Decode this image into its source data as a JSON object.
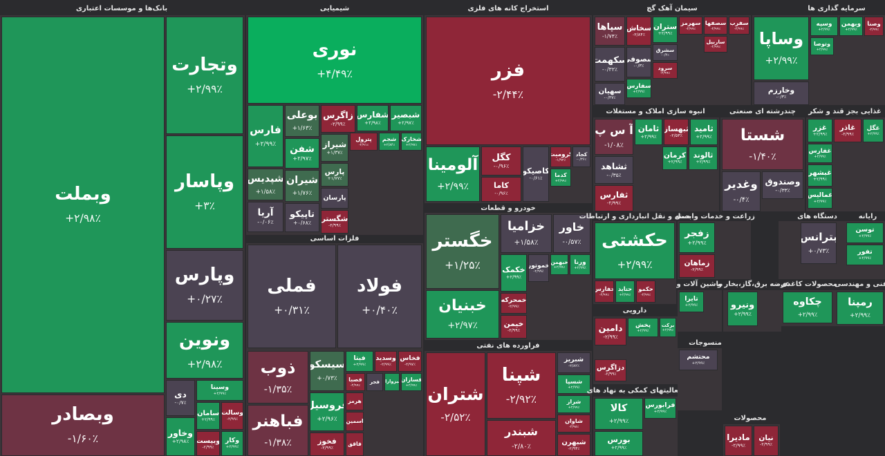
{
  "sectors": [
    {
      "title": "بانک‌ها و موسسات اعتباری",
      "tiles": [
        {
          "name": "وبملت",
          "change": "+۲/۹۸٪",
          "color": "#1f9659"
        },
        {
          "name": "وتجارت",
          "change": "+۲/۹۹٪",
          "color": "#1f9659"
        },
        {
          "name": "وپاسار",
          "change": "+۳٪",
          "color": "#1f9659"
        },
        {
          "name": "وپارس",
          "change": "+۰/۲۷٪",
          "color": "#4b4352"
        },
        {
          "name": "ونوین",
          "change": "+۲/۹۸٪",
          "color": "#1f9659"
        },
        {
          "name": "وبصادر",
          "change": "-۱/۶۰٪",
          "color": "#6e3344"
        },
        {
          "name": "دی",
          "change": "-۰/۷٪",
          "color": "#4b4352"
        },
        {
          "name": "وسینا",
          "change": "+۲/۹۹٪",
          "color": "#1f9659"
        },
        {
          "name": "سامان",
          "change": "+۲/۹۹٪",
          "color": "#1f9659"
        },
        {
          "name": "وسالت",
          "change": "-۲/۹۹٪",
          "color": "#8f2638"
        },
        {
          "name": "وخاور",
          "change": "+۲/۹۸٪",
          "color": "#1f9659"
        },
        {
          "name": "وبیست",
          "change": "-۲/۹۹٪",
          "color": "#8f2638"
        },
        {
          "name": "وکار",
          "change": "+۲/۹۹٪",
          "color": "#1f9659"
        }
      ]
    },
    {
      "title": "شیمیایی",
      "tiles": [
        {
          "name": "نوری",
          "change": "+۴/۴۹٪",
          "color": "#0aae5d"
        },
        {
          "name": "فارس",
          "change": "+۲/۹۹٪",
          "color": "#1f9659"
        },
        {
          "name": "بوعلی",
          "change": "+۱/۶۳٪",
          "color": "#3f6b4f"
        },
        {
          "name": "شفن",
          "change": "+۲/۹۷٪",
          "color": "#1f9659"
        },
        {
          "name": "زاگرس",
          "change": "-۲/۹۹٪",
          "color": "#8f2638"
        },
        {
          "name": "شفارس",
          "change": "+۲/۹۸٪",
          "color": "#1f9659"
        },
        {
          "name": "شبصیر",
          "change": "+۲/۹۷٪",
          "color": "#1f9659"
        },
        {
          "name": "شیراز",
          "change": "+۱/۳۷٪",
          "color": "#3f6b4f"
        },
        {
          "name": "پترول",
          "change": "-۲/۹۱٪",
          "color": "#8f2638"
        },
        {
          "name": "شجم",
          "change": "+۲/۸۴٪",
          "color": "#1f9659"
        },
        {
          "name": "شخارک",
          "change": "+۲/۹۷٪",
          "color": "#1f9659"
        },
        {
          "name": "شپدیس",
          "change": "+۱/۵۸٪",
          "color": "#3f6b4f"
        },
        {
          "name": "شیران",
          "change": "+۱/۷۶٪",
          "color": "#3f6b4f"
        },
        {
          "name": "پارس",
          "change": "+۱/۷۷٪",
          "color": "#3f6b4f"
        },
        {
          "name": "پارسان",
          "color": "#4b4352"
        },
        {
          "name": "آریا",
          "change": "-۰/۰۶٪",
          "color": "#4b4352"
        },
        {
          "name": "تاپیکو",
          "change": "+۰/۶۸٪",
          "color": "#4b4352"
        },
        {
          "name": "شگستر",
          "change": "-۲/۹۹٪",
          "color": "#8f2638"
        }
      ]
    },
    {
      "title": "فلزات اساسی",
      "tiles": [
        {
          "name": "فملی",
          "change": "+۰/۳۱٪",
          "color": "#4b4352"
        },
        {
          "name": "فولاد",
          "change": "+۰/۴۰٪",
          "color": "#4b4352"
        },
        {
          "name": "ذوب",
          "change": "-۱/۳۵٪",
          "color": "#6e3344"
        },
        {
          "name": "فباهنر",
          "change": "-۱/۳۸٪",
          "color": "#6e3344"
        },
        {
          "name": "سیسکو",
          "change": "+۰/۷۳٪",
          "color": "#3f6b4f"
        },
        {
          "name": "فروسیل",
          "change": "+۲/۹۶٪",
          "color": "#1f9659"
        },
        {
          "name": "فخوز",
          "change": "-۲/۹۹٪",
          "color": "#8f2638"
        },
        {
          "name": "فیتا",
          "change": "+۲/۹۹٪",
          "color": "#1f9659"
        },
        {
          "name": "وسدید",
          "change": "-۲/۹۹٪",
          "color": "#8f2638"
        },
        {
          "name": "فخاس",
          "change": "-۲/۹۷٪",
          "color": "#8f2638"
        },
        {
          "name": "فصبا",
          "change": "-۲/۹۹٪",
          "color": "#8f2638"
        },
        {
          "name": "فجر",
          "color": "#4b4352"
        },
        {
          "name": "سیزواران",
          "color": "#1f9659"
        },
        {
          "name": "فسازان",
          "change": "+۲/۹۹٪",
          "color": "#1f9659"
        },
        {
          "name": "هرمز",
          "color": "#8f2638"
        },
        {
          "name": "اسمین",
          "color": "#8f2638"
        },
        {
          "name": "فاقق",
          "color": "#8f2638"
        }
      ]
    },
    {
      "title": "استخراج کانه های فلزی",
      "tiles": [
        {
          "name": "فزر",
          "change": "-۲/۴۴٪",
          "color": "#8f2638"
        },
        {
          "name": "آلومینا",
          "change": "+۲/۹۹٪",
          "color": "#1f9659"
        },
        {
          "name": "کگل",
          "change": "-۰/۹۶٪",
          "color": "#8f2638"
        },
        {
          "name": "کاما",
          "change": "-۰/۹۶٪",
          "color": "#8f2638"
        },
        {
          "name": "کاصیکو",
          "change": "-۰/۶۱٪",
          "color": "#4b4352"
        },
        {
          "name": "کرومیت",
          "change": "-۱/۹۲٪",
          "color": "#8f2638"
        },
        {
          "name": "کجاد",
          "change": "-۰/۳۶٪",
          "color": "#4b4352"
        },
        {
          "name": "کدما",
          "change": "+۲/۹۹٪",
          "color": "#1f9659"
        }
      ]
    },
    {
      "title": "خودرو و قطعات",
      "tiles": [
        {
          "name": "خگستر",
          "change": "+۱/۲۵٪",
          "color": "#3f6b4f"
        },
        {
          "name": "خبنیان",
          "change": "+۲/۹۷٪",
          "color": "#1f9659"
        },
        {
          "name": "خزامیا",
          "change": "+۱/۵۸٪",
          "color": "#4b4352"
        },
        {
          "name": "خاور",
          "change": "-۰/۵۷٪",
          "color": "#4b4352"
        },
        {
          "name": "خکمک",
          "change": "+۲/۹۹٪",
          "color": "#1f9659"
        },
        {
          "name": "خموتور",
          "change": "-۲/۹۹٪",
          "color": "#4b4352"
        },
        {
          "name": "خبهمن",
          "change": "+۲/۹۹٪",
          "color": "#1f9659"
        },
        {
          "name": "ورنا",
          "change": "+۲/۹۹٪",
          "color": "#1f9659"
        },
        {
          "name": "خمحرکه",
          "change": "-۲/۹۹٪",
          "color": "#8f2638"
        },
        {
          "name": "خیمن",
          "change": "-۲/۹۹٪",
          "color": "#8f2638"
        }
      ]
    },
    {
      "title": "فراورده های نفتی",
      "tiles": [
        {
          "name": "شتران",
          "change": "-۲/۵۲٪",
          "color": "#8f2638"
        },
        {
          "name": "شپنا",
          "change": "-۲/۹۲٪",
          "color": "#8f2638"
        },
        {
          "name": "شبندر",
          "change": "-۲/۸۰٪",
          "color": "#8f2638"
        },
        {
          "name": "شبریز",
          "change": "-۲/۸۲٪",
          "color": "#4b4352"
        },
        {
          "name": "شسپا",
          "change": "+۲/۹۹٪",
          "color": "#1f9659"
        },
        {
          "name": "شراز",
          "change": "+۲/۹۹٪",
          "color": "#1f9659"
        },
        {
          "name": "شاوان",
          "change": "-۲/۹۸٪",
          "color": "#8f2638"
        },
        {
          "name": "شبهرن",
          "change": "-۲/۹۴٪",
          "color": "#8f2638"
        }
      ]
    },
    {
      "title": "سیمان آهک گچ",
      "tiles": [
        {
          "name": "سپاها",
          "change": "-۱/۷۴٪",
          "color": "#6e3344"
        },
        {
          "name": "سخاش",
          "change": "-۲/۸۴٪",
          "color": "#8f2638"
        },
        {
          "name": "ستران",
          "change": "+۲/۹۹٪",
          "color": "#1f9659"
        },
        {
          "name": "سهرمز",
          "change": "-۲/۹۹٪",
          "color": "#8f2638"
        },
        {
          "name": "سصفها",
          "change": "-۲/۹۹٪",
          "color": "#8f2638"
        },
        {
          "name": "سفرب",
          "change": "-۲/۹۹٪",
          "color": "#8f2638"
        },
        {
          "name": "سکهمت",
          "change": "-۰/۳۲٪",
          "color": "#4b4352"
        },
        {
          "name": "سصوفی",
          "change": "-۰/۳٪",
          "color": "#4b4352"
        },
        {
          "name": "سشرق",
          "change": "-۰/۴٪",
          "color": "#4b4352"
        },
        {
          "name": "سرود",
          "change": "-۲/۹۹٪",
          "color": "#8f2638"
        },
        {
          "name": "سهیان",
          "change": "-۰/۳۷٪",
          "color": "#4b4352"
        },
        {
          "name": "سفارس",
          "change": "+۲/۹۹٪",
          "color": "#1f9659"
        },
        {
          "name": "ساربیل",
          "change": "-۲/۹۹٪",
          "color": "#8f2638"
        }
      ]
    },
    {
      "title": "سرمایه گذاری ها",
      "tiles": [
        {
          "name": "وساپا",
          "change": "+۲/۹۹٪",
          "color": "#1f9659"
        },
        {
          "name": "وخارزم",
          "change": "-۰/۳٪",
          "color": "#4b4352"
        },
        {
          "name": "وسپه",
          "change": "+۲/۹۹٪",
          "color": "#1f9659"
        },
        {
          "name": "وبهمن",
          "change": "+۲/۹۹٪",
          "color": "#1f9659"
        },
        {
          "name": "وصنا",
          "change": "-۲/۹۹٪",
          "color": "#8f2638"
        },
        {
          "name": "وتوصا",
          "change": "+۲/۹۹٪",
          "color": "#1f9659"
        }
      ]
    },
    {
      "title": "انبوه سازی املاک و مستغلات",
      "tiles": [
        {
          "name": "آ س پ",
          "change": "-۱/۰۸٪",
          "color": "#6e3344"
        },
        {
          "name": "ثامان",
          "change": "+۲/۹۹٪",
          "color": "#1f9659"
        },
        {
          "name": "ثبهساز",
          "change": "-۲/۵۳٪",
          "color": "#8f2638"
        },
        {
          "name": "ثامید",
          "change": "+۲/۹۹٪",
          "color": "#1f9659"
        },
        {
          "name": "ثشاهد",
          "change": "-۰/۳۵٪",
          "color": "#4b4352"
        },
        {
          "name": "ثفارس",
          "change": "-۲/۹۹٪",
          "color": "#8f2638"
        },
        {
          "name": "کرمان",
          "change": "+۲/۹۹٪",
          "color": "#1f9659"
        },
        {
          "name": "ثالوند",
          "change": "+۲/۹۹٪",
          "color": "#1f9659"
        }
      ]
    },
    {
      "title": "چندرشته ای صنعتی",
      "tiles": [
        {
          "name": "شستا",
          "change": "-۱/۴۰٪",
          "color": "#6e3344"
        },
        {
          "name": "وغدیر",
          "change": "-۰/۴٪",
          "color": "#4b4352"
        },
        {
          "name": "وصندوق",
          "change": "-۰/۳۳٪",
          "color": "#4b4352"
        }
      ]
    },
    {
      "title": "غذایی بجز قند و شکر",
      "tiles": [
        {
          "name": "غزر",
          "change": "+۲/۹۹٪",
          "color": "#1f9659"
        },
        {
          "name": "غاذر",
          "change": "-۲/۹۹٪",
          "color": "#8f2638"
        },
        {
          "name": "غگل",
          "change": "+۲/۹۹٪",
          "color": "#1f9659"
        },
        {
          "name": "غفارس",
          "change": "+۲/۹۹٪",
          "color": "#1f9659"
        },
        {
          "name": "غبشهر",
          "change": "+۲/۹۹٪",
          "color": "#1f9659"
        },
        {
          "name": "غمالیس",
          "change": "+۲/۹۹٪",
          "color": "#1f9659"
        }
      ]
    },
    {
      "title": "حمل و نقل انبارداری و ارتباطات",
      "tiles": [
        {
          "name": "حکشتی",
          "change": "+۲/۹۹٪",
          "color": "#1f9659"
        },
        {
          "name": "حفارس",
          "change": "-۲/۹۹٪",
          "color": "#8f2638"
        },
        {
          "name": "حتاید",
          "change": "+۲/۹۹٪",
          "color": "#1f9659"
        },
        {
          "name": "حکمو",
          "change": "-۲/۹۹٪",
          "color": "#8f2638"
        }
      ]
    },
    {
      "title": "زراعت و خدمات وابسته",
      "tiles": [
        {
          "name": "زفجر",
          "change": "+۲/۹۹٪",
          "color": "#1f9659"
        },
        {
          "name": "زماهان",
          "change": "-۲/۹۹٪",
          "color": "#8f2638"
        }
      ]
    },
    {
      "title": "دستگاه های",
      "tiles": [
        {
          "name": "بترانس",
          "change": "+۰/۷۳٪",
          "color": "#4b4352"
        }
      ]
    },
    {
      "title": "رایانه",
      "tiles": [
        {
          "name": "توسن",
          "change": "+۲/۹۹٪",
          "color": "#1f9659"
        },
        {
          "name": "تفور",
          "change": "+۲/۹۹٪",
          "color": "#1f9659"
        }
      ]
    },
    {
      "title": "فنی و مهندسی",
      "tiles": [
        {
          "name": "رمپنا",
          "change": "+۲/۹۹٪",
          "color": "#1f9659"
        }
      ]
    },
    {
      "title": "محصولات کاغذی",
      "tiles": [
        {
          "name": "چکاوه",
          "change": "+۲/۹۹٪",
          "color": "#1f9659"
        }
      ]
    },
    {
      "title": "دارویی",
      "tiles": [
        {
          "name": "دامین",
          "change": "-۲/۹۹٪",
          "color": "#8f2638"
        },
        {
          "name": "پخش",
          "change": "+۲/۹۹٪",
          "color": "#1f9659"
        },
        {
          "name": "برکت",
          "change": "+۲/۹۹٪",
          "color": "#1f9659"
        },
        {
          "name": "دزاگرس",
          "change": "-۲/۹۹٪",
          "color": "#8f2638"
        }
      ]
    },
    {
      "title": "فعالیتهای کمکی به نهاد های",
      "tiles": [
        {
          "name": "کالا",
          "change": "+۲/۹۹٪",
          "color": "#1f9659"
        },
        {
          "name": "بورس",
          "change": "+۲/۹۹٪",
          "color": "#1f9659"
        },
        {
          "name": "فرابورس",
          "change": "+۲/۹۹٪",
          "color": "#1f9659"
        }
      ]
    },
    {
      "title": "منسوجات",
      "tiles": [
        {
          "name": "محتشم",
          "change": "+۲/۹۹٪",
          "color": "#4b4352"
        }
      ]
    },
    {
      "title": "محصولات",
      "tiles": [
        {
          "name": "مادیرا",
          "change": "-۲/۹۹٪",
          "color": "#8f2638"
        },
        {
          "name": "نیان",
          "change": "-۲/۹۹٪",
          "color": "#8f2638"
        }
      ]
    },
    {
      "title": "عرضه برق،گاز،بخار و",
      "tiles": [
        {
          "name": "ونیرو",
          "change": "+۲/۹۹٪",
          "color": "#1f9659"
        }
      ]
    },
    {
      "title": "ماشین آلات و",
      "tiles": [
        {
          "name": "تایرا",
          "change": "+۲/۹۹٪",
          "color": "#1f9659"
        }
      ]
    }
  ]
}
